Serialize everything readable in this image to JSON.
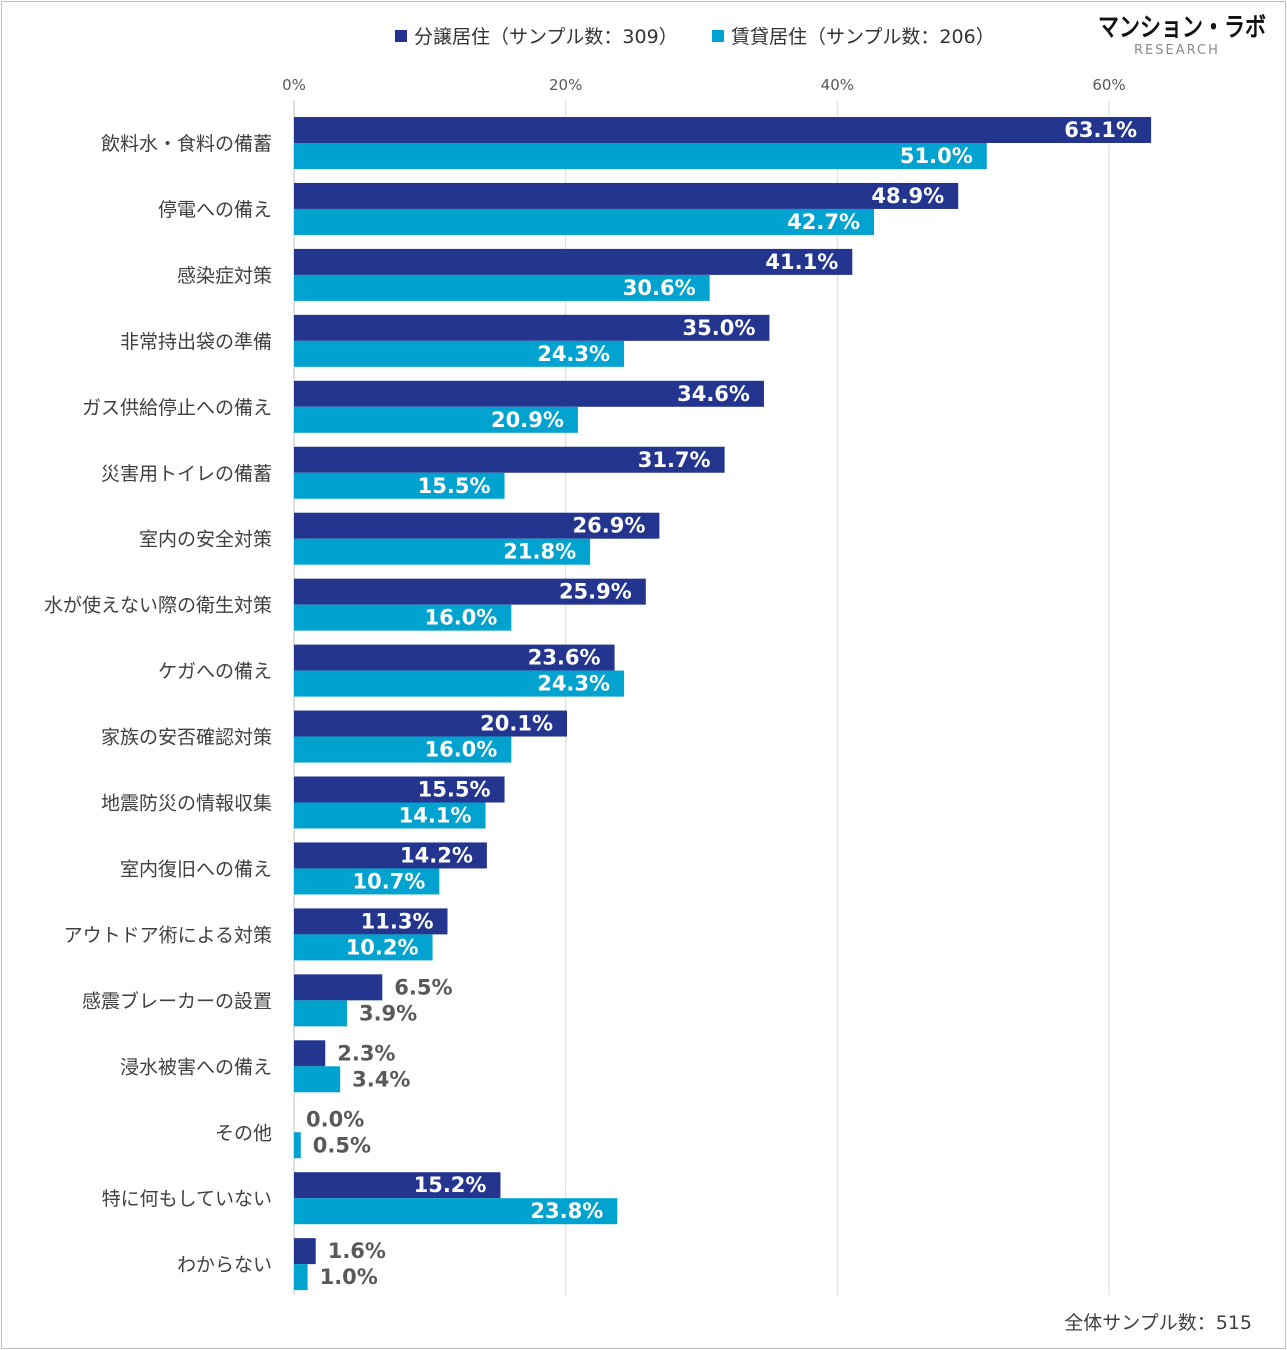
{
  "logo": {
    "name": "マンション・ラボ",
    "sub": "RESEARCH"
  },
  "footer": {
    "total_sample": "全体サンプル数：515"
  },
  "colors": {
    "owned": "#23358f",
    "rented": "#00a3cf",
    "grid": "#d9d9d9",
    "axis": "#bfbfbf"
  },
  "chart_data": {
    "type": "bar",
    "orientation": "horizontal",
    "categories": [
      "飲料水・食料の備蓄",
      "停電への備え",
      "感染症対策",
      "非常持出袋の準備",
      "ガス供給停止への備え",
      "災害用トイレの備蓄",
      "室内の安全対策",
      "水が使えない際の衛生対策",
      "ケガへの備え",
      "家族の安否確認対策",
      "地震防災の情報収集",
      "室内復旧への備え",
      "アウトドア術による対策",
      "感震ブレーカーの設置",
      "浸水被害への備え",
      "その他",
      "特に何もしていない",
      "わからない"
    ],
    "series": [
      {
        "name": "分譲居住（サンプル数：309）",
        "values": [
          63.1,
          48.9,
          41.1,
          35.0,
          34.6,
          31.7,
          26.9,
          25.9,
          23.6,
          20.1,
          15.5,
          14.2,
          11.3,
          6.5,
          2.3,
          0.0,
          15.2,
          1.6
        ],
        "labels": [
          "63.1%",
          "48.9%",
          "41.1%",
          "35.0%",
          "34.6%",
          "31.7%",
          "26.9%",
          "25.9%",
          "23.6%",
          "20.1%",
          "15.5%",
          "14.2%",
          "11.3%",
          "6.5%",
          "2.3%",
          "0.0%",
          "15.2%",
          "1.6%"
        ]
      },
      {
        "name": "賃貸居住（サンプル数：206）",
        "values": [
          51.0,
          42.7,
          30.6,
          24.3,
          20.9,
          15.5,
          21.8,
          16.0,
          24.3,
          16.0,
          14.1,
          10.7,
          10.2,
          3.9,
          3.4,
          0.5,
          23.8,
          1.0
        ],
        "labels": [
          "51.0%",
          "42.7%",
          "30.6%",
          "24.3%",
          "20.9%",
          "15.5%",
          "21.8%",
          "16.0%",
          "24.3%",
          "16.0%",
          "14.1%",
          "10.7%",
          "10.2%",
          "3.9%",
          "3.4%",
          "0.5%",
          "23.8%",
          "1.0%"
        ]
      }
    ],
    "x_ticks": [
      0,
      20,
      40,
      60
    ],
    "x_tick_labels": [
      "0%",
      "20%",
      "40%",
      "60%"
    ],
    "xlim": [
      0,
      66
    ],
    "grid": true,
    "legend_position": "top-center"
  }
}
